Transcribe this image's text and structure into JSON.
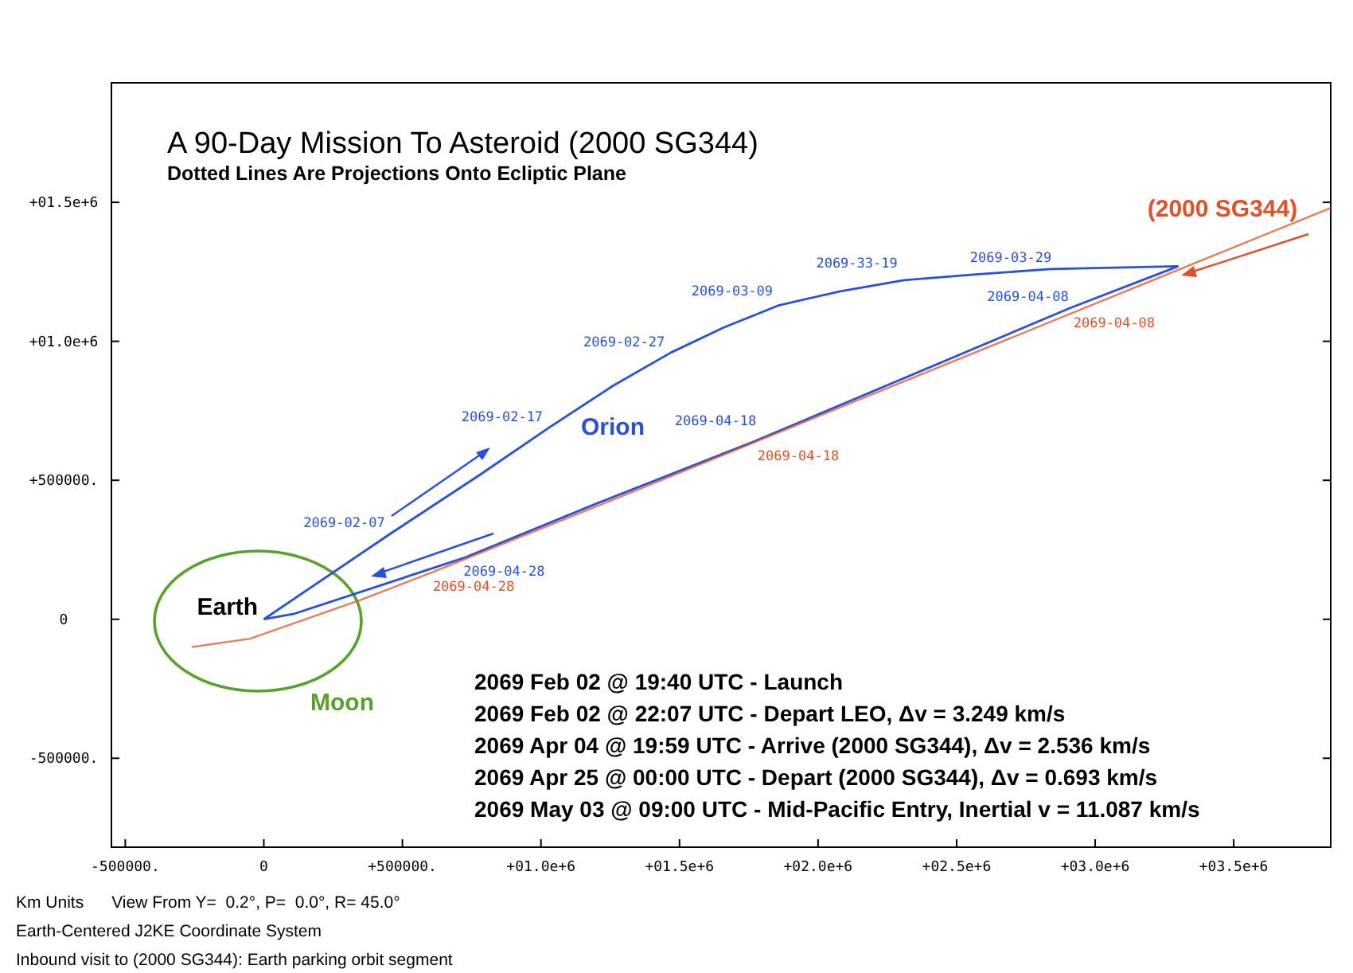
{
  "chart_data": {
    "type": "line",
    "title": "A 90-Day Mission To Asteroid (2000 SG344)",
    "subtitle": "Dotted Lines Are Projections Onto Ecliptic Plane",
    "xlim": [
      -550000,
      3850000
    ],
    "ylim": [
      -820000,
      1930000
    ],
    "xticks": [
      {
        "value": -500000,
        "label": "-500000."
      },
      0,
      {
        "value": 500000,
        "label": "+500000."
      },
      {
        "value": 1000000,
        "label": "+01.0e+6"
      },
      {
        "value": 1500000,
        "label": "+01.5e+6"
      },
      {
        "value": 2000000,
        "label": "+02.0e+6"
      },
      {
        "value": 2500000,
        "label": "+02.5e+6"
      },
      {
        "value": 3000000,
        "label": "+03.0e+6"
      },
      {
        "value": 3500000,
        "label": "+03.5e+6"
      }
    ],
    "yticks": [
      {
        "value": -500000,
        "label": "-500000."
      },
      0,
      {
        "value": 500000,
        "label": "+500000."
      },
      {
        "value": 1000000,
        "label": "+01.0e+6"
      },
      {
        "value": 1500000,
        "label": "+01.5e+6"
      }
    ],
    "grid": false,
    "line_style": "solid",
    "marker": "none",
    "series": [
      {
        "name": "Orion",
        "color": "#2a4fd8",
        "x": [
          0,
          460000,
          780000,
          1030000,
          1260000,
          1470000,
          1660000,
          1860000,
          2080000,
          2310000,
          2560000,
          2840000,
          3300000
        ],
        "values": [
          0,
          310000,
          520000,
          690000,
          840000,
          960000,
          1050000,
          1130000,
          1180000,
          1220000,
          1240000,
          1260000,
          1270000
        ]
      },
      {
        "color": "#2a4fd8",
        "x": [
          0,
          110000,
          720000,
          1210000,
          1770000,
          2910000,
          3300000
        ],
        "values": [
          0,
          20000,
          220000,
          420000,
          640000,
          1120000,
          1270000
        ]
      },
      {
        "name": "(2000 SG344)",
        "color": "#e0502a",
        "x": [
          -260000,
          -50000,
          350000,
          610000,
          1210000,
          3850000
        ],
        "values": [
          -100000,
          -70000,
          70000,
          170000,
          410000,
          1480000
        ]
      }
    ],
    "annotations": [
      {
        "text": "Earth",
        "x": 0,
        "y": 0
      },
      {
        "text": "2069-02-07",
        "x": 460000,
        "y": 310000
      },
      {
        "text": "2069-02-17",
        "x": 1030000,
        "y": 690000
      },
      {
        "text": "2069-02-27",
        "x": 1470000,
        "y": 960000
      },
      {
        "text": "2069-03-09",
        "x": 1860000,
        "y": 1130000
      },
      {
        "text": "2069-33-19",
        "x": 2310000,
        "y": 1220000
      },
      {
        "text": "2069-03-29",
        "x": 2560000,
        "y": 1240000
      },
      {
        "text": "2069-04-08",
        "x": 2840000,
        "y": 1260000
      },
      {
        "text": "2069-04-18",
        "x": 1770000,
        "y": 640000
      },
      {
        "text": "2069-04-28",
        "x": 720000,
        "y": 220000
      },
      {
        "text": "2069-04-08",
        "x": 2910000,
        "y": 1120000
      },
      {
        "text": "2069-04-18",
        "x": 1770000,
        "y": 640000
      },
      {
        "text": "2069-04-28",
        "x": 610000,
        "y": 170000
      },
      "2069 Feb 02 @ 19:40 UTC - Launch",
      "2069 Feb 02 @ 22:07 UTC - Depart LEO, Δv = 3.249 km/s",
      "2069 Apr 04 @ 19:59 UTC - Arrive (2000 SG344), Δv = 2.536 km/s",
      "2069 Apr 25 @ 00:00 UTC - Depart (2000 SG344), Δv = 0.693 km/s",
      "2069 May 03 @ 09:00 UTC - Mid-Pacific Entry, Inertial v = 11.087 km/s",
      "Km Units      View From Y=  0.2°, P=  0.0°, R= 45.0°",
      "Earth-Centered J2KE Coordinate System",
      "Inbound visit to (2000 SG344): Earth parking orbit segment",
      "Moon"
    ]
  }
}
